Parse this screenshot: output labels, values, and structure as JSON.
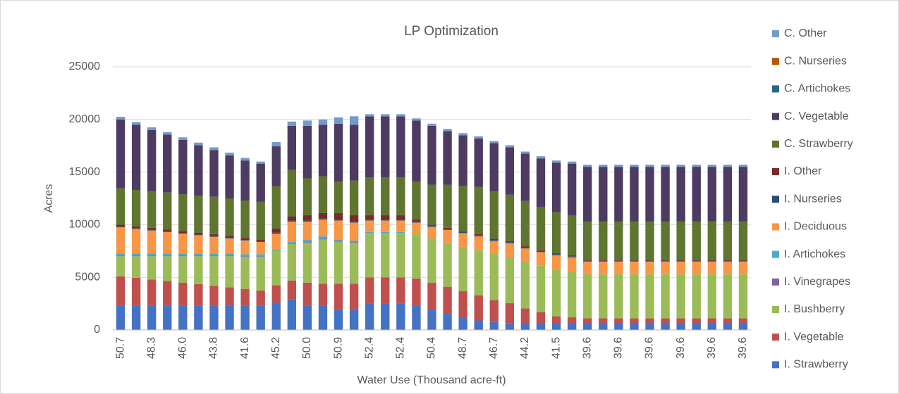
{
  "chart_data": {
    "type": "stacked-bar",
    "title": "LP Optimization",
    "x_label": "Water Use (Thousand acre-ft)",
    "y_label": "Acres",
    "categories": [
      "50.7",
      null,
      "48.3",
      null,
      "46.0",
      null,
      "43.8",
      null,
      "41.6",
      null,
      "45.2",
      null,
      "50.0",
      null,
      "50.9",
      null,
      "52.4",
      null,
      "52.4",
      null,
      "50.4",
      null,
      "48.7",
      null,
      "46.7",
      null,
      "44.2",
      null,
      "41.5",
      null,
      "39.6",
      null,
      "39.6",
      null,
      "39.6",
      null,
      "39.6",
      null,
      "39.6",
      null,
      "39.6"
    ],
    "ylim": [
      0,
      25000
    ],
    "yticks": [
      0,
      5000,
      10000,
      15000,
      20000,
      25000
    ],
    "grid": true,
    "legend": "right",
    "series": [
      {
        "name": "I. Strawberry",
        "color": "#4472c4",
        "values": [
          2300,
          2300,
          2300,
          2300,
          2300,
          2300,
          2300,
          2300,
          2300,
          2300,
          2600,
          2900,
          2300,
          2300,
          2000,
          2000,
          2500,
          2500,
          2500,
          2300,
          1900,
          1600,
          1200,
          900,
          750,
          650,
          600,
          600,
          600,
          600,
          600,
          600,
          600,
          600,
          600,
          600,
          600,
          600,
          600,
          600,
          600
        ]
      },
      {
        "name": "I. Vegetable",
        "color": "#c0504d",
        "values": [
          2800,
          2650,
          2500,
          2350,
          2200,
          2050,
          1900,
          1750,
          1600,
          1450,
          1650,
          1800,
          2200,
          2100,
          2400,
          2400,
          2500,
          2500,
          2500,
          2600,
          2600,
          2500,
          2500,
          2400,
          2100,
          1900,
          1450,
          1100,
          700,
          600,
          500,
          500,
          500,
          500,
          500,
          500,
          500,
          500,
          500,
          500,
          500
        ]
      },
      {
        "name": "I. Bushberry",
        "color": "#9bbb59",
        "values": [
          1900,
          2050,
          2200,
          2350,
          2500,
          2650,
          2800,
          2950,
          3050,
          3200,
          3300,
          3500,
          3800,
          4200,
          4000,
          3900,
          4200,
          4200,
          4200,
          4200,
          4200,
          4200,
          4200,
          4300,
          4400,
          4400,
          4400,
          4400,
          4500,
          4400,
          4200,
          4200,
          4200,
          4200,
          4200,
          4200,
          4200,
          4200,
          4200,
          4200,
          4200
        ]
      },
      {
        "name": "I. Vinegrapes",
        "color": "#8064a2",
        "values": [
          50,
          50,
          50,
          50,
          50,
          50,
          50,
          50,
          50,
          50,
          0,
          100,
          100,
          100,
          100,
          100,
          0,
          0,
          0,
          0,
          0,
          0,
          0,
          0,
          0,
          0,
          0,
          0,
          0,
          0,
          0,
          0,
          0,
          0,
          0,
          0,
          0,
          0,
          0,
          0,
          0
        ]
      },
      {
        "name": "I. Artichokes",
        "color": "#4bacc6",
        "values": [
          200,
          200,
          200,
          200,
          200,
          200,
          200,
          200,
          200,
          200,
          100,
          100,
          200,
          200,
          100,
          100,
          100,
          100,
          100,
          0,
          0,
          0,
          0,
          0,
          0,
          0,
          0,
          0,
          0,
          0,
          0,
          0,
          0,
          0,
          0,
          0,
          0,
          0,
          0,
          0,
          0
        ]
      },
      {
        "name": "I. Deciduous",
        "color": "#f79646",
        "values": [
          2500,
          2350,
          2200,
          2050,
          1900,
          1750,
          1600,
          1450,
          1300,
          1150,
          1500,
          1900,
          1700,
          1600,
          1800,
          1700,
          1100,
          1100,
          1100,
          1100,
          1100,
          1200,
          1300,
          1300,
          1200,
          1300,
          1300,
          1300,
          1300,
          1300,
          1200,
          1200,
          1200,
          1200,
          1200,
          1200,
          1200,
          1200,
          1200,
          1200,
          1200
        ]
      },
      {
        "name": "I. Nurseries",
        "color": "#2c4d75",
        "values": [
          50,
          50,
          50,
          50,
          50,
          50,
          50,
          50,
          50,
          50,
          100,
          100,
          100,
          100,
          100,
          100,
          100,
          100,
          100,
          100,
          100,
          100,
          100,
          100,
          100,
          100,
          100,
          100,
          100,
          100,
          100,
          100,
          100,
          100,
          100,
          100,
          100,
          100,
          100,
          100,
          100
        ]
      },
      {
        "name": "I. Other",
        "color": "#772c2a",
        "values": [
          200,
          200,
          200,
          200,
          200,
          200,
          200,
          200,
          200,
          200,
          400,
          400,
          500,
          500,
          600,
          600,
          400,
          400,
          400,
          200,
          100,
          100,
          100,
          100,
          100,
          100,
          100,
          100,
          100,
          100,
          100,
          100,
          100,
          100,
          100,
          100,
          100,
          100,
          100,
          100,
          100
        ]
      },
      {
        "name": "C. Strawberry",
        "color": "#5f7530",
        "values": [
          3450,
          3450,
          3450,
          3500,
          3500,
          3500,
          3550,
          3550,
          3550,
          3600,
          4000,
          4400,
          3500,
          3500,
          3000,
          3300,
          3600,
          3600,
          3600,
          3600,
          3800,
          4100,
          4300,
          4500,
          4500,
          4400,
          4300,
          4100,
          3900,
          3800,
          3600,
          3600,
          3600,
          3600,
          3600,
          3600,
          3600,
          3600,
          3600,
          3600,
          3600
        ]
      },
      {
        "name": "C. Vegetable",
        "color": "#4d3b62",
        "values": [
          6550,
          6200,
          5850,
          5500,
          5150,
          4800,
          4450,
          4100,
          3800,
          3600,
          3800,
          4200,
          5000,
          4900,
          5500,
          5300,
          5800,
          5800,
          5800,
          5800,
          5600,
          5100,
          4800,
          4600,
          4600,
          4500,
          4500,
          4600,
          4700,
          4900,
          5200,
          5200,
          5200,
          5200,
          5200,
          5200,
          5200,
          5200,
          5200,
          5200,
          5200
        ]
      },
      {
        "name": "C. Artichokes",
        "color": "#276a7c",
        "values": [
          0,
          0,
          0,
          0,
          0,
          0,
          0,
          0,
          0,
          0,
          0,
          0,
          0,
          0,
          0,
          0,
          0,
          0,
          0,
          0,
          0,
          0,
          0,
          0,
          0,
          0,
          0,
          0,
          0,
          0,
          0,
          0,
          0,
          0,
          0,
          0,
          0,
          0,
          0,
          0,
          0
        ]
      },
      {
        "name": "C. Nurseries",
        "color": "#b65708",
        "values": [
          0,
          0,
          0,
          0,
          0,
          0,
          0,
          0,
          0,
          0,
          0,
          0,
          0,
          0,
          0,
          0,
          0,
          0,
          0,
          0,
          0,
          0,
          0,
          0,
          0,
          0,
          0,
          0,
          0,
          0,
          0,
          0,
          0,
          0,
          0,
          0,
          0,
          0,
          0,
          0,
          0
        ]
      },
      {
        "name": "C. Other",
        "color": "#729aca",
        "values": [
          250,
          250,
          250,
          250,
          250,
          250,
          250,
          250,
          250,
          200,
          400,
          400,
          500,
          500,
          600,
          800,
          200,
          200,
          200,
          200,
          200,
          200,
          200,
          200,
          200,
          200,
          200,
          200,
          200,
          200,
          200,
          200,
          200,
          200,
          200,
          200,
          200,
          200,
          200,
          200,
          200
        ]
      }
    ]
  }
}
